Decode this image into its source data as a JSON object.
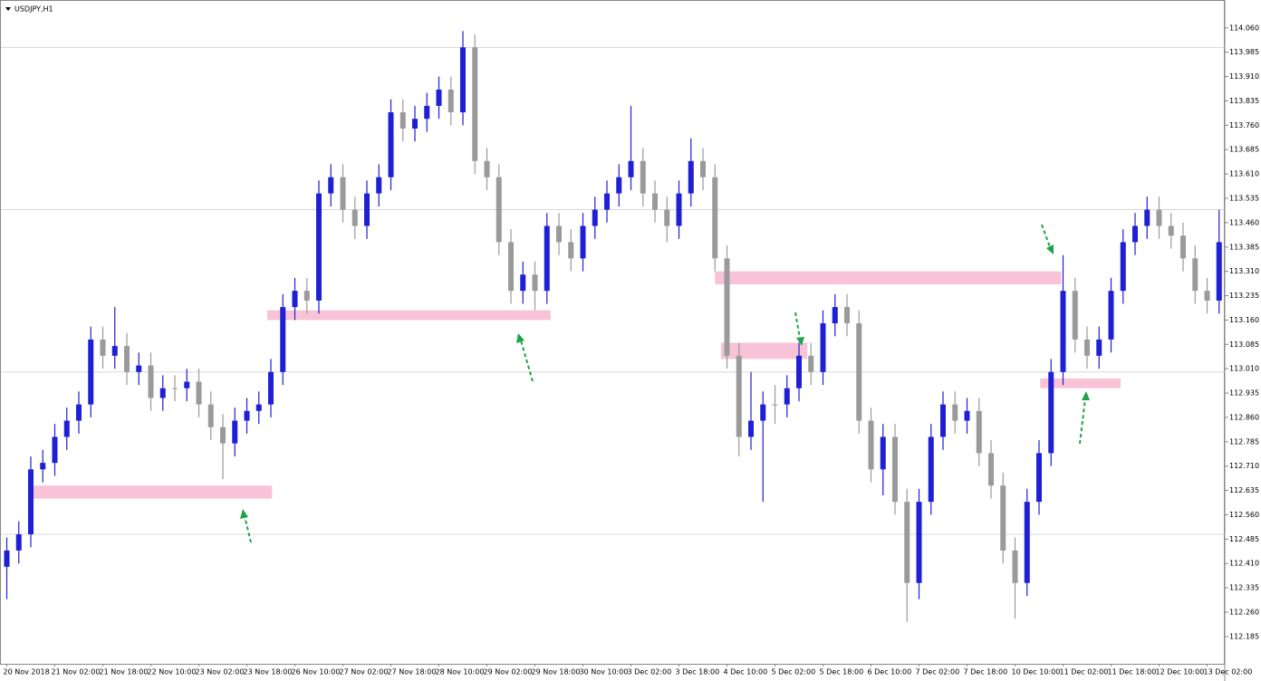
{
  "chart_data": {
    "type": "candlestick",
    "title": "USDJPY,H1",
    "categories": [
      "20 Nov 2018",
      null,
      null,
      null,
      "21 Nov 02:00",
      null,
      null,
      null,
      "21 Nov 18:00",
      null,
      null,
      null,
      "22 Nov 10:00",
      null,
      null,
      null,
      "23 Nov 02:00",
      null,
      null,
      null,
      "23 Nov 18:00",
      null,
      null,
      null,
      "26 Nov 10:00",
      null,
      null,
      null,
      "27 Nov 02:00",
      null,
      null,
      null,
      "27 Nov 18:00",
      null,
      null,
      null,
      "28 Nov 10:00",
      null,
      null,
      null,
      "29 Nov 02:00",
      null,
      null,
      null,
      "29 Nov 18:00",
      null,
      null,
      null,
      "30 Nov 10:00",
      null,
      null,
      null,
      "3 Dec 02:00",
      null,
      null,
      null,
      "3 Dec 18:00",
      null,
      null,
      null,
      "4 Dec 10:00",
      null,
      null,
      null,
      "5 Dec 02:00",
      null,
      null,
      null,
      "5 Dec 18:00",
      null,
      null,
      null,
      "6 Dec 10:00",
      null,
      null,
      null,
      "7 Dec 02:00",
      null,
      null,
      null,
      "7 Dec 18:00",
      null,
      null,
      null,
      "10 Dec 10:00",
      null,
      null,
      null,
      "11 Dec 02:00",
      null,
      null,
      null,
      "11 Dec 18:00",
      null,
      null,
      null,
      "12 Dec 10:00",
      null,
      null,
      null,
      "13 Dec 02:00",
      null
    ],
    "open": [
      112.4,
      112.45,
      112.5,
      112.7,
      112.72,
      112.8,
      112.85,
      112.9,
      113.1,
      113.05,
      113.08,
      113.0,
      113.02,
      112.92,
      112.95,
      112.95,
      112.97,
      112.9,
      112.83,
      112.78,
      112.85,
      112.88,
      112.9,
      113.0,
      113.2,
      113.25,
      113.22,
      113.55,
      113.6,
      113.5,
      113.45,
      113.55,
      113.6,
      113.8,
      113.75,
      113.78,
      113.82,
      113.87,
      113.8,
      114.0,
      113.65,
      113.6,
      113.4,
      113.25,
      113.3,
      113.25,
      113.45,
      113.4,
      113.35,
      113.45,
      113.5,
      113.55,
      113.6,
      113.65,
      113.55,
      113.5,
      113.45,
      113.55,
      113.65,
      113.6,
      113.35,
      113.05,
      112.8,
      112.85,
      112.9,
      112.9,
      112.95,
      113.05,
      113.0,
      113.15,
      113.2,
      113.15,
      112.85,
      112.7,
      112.8,
      112.6,
      112.35,
      112.6,
      112.8,
      112.9,
      112.85,
      112.88,
      112.75,
      112.65,
      112.45,
      112.35,
      112.6,
      112.75,
      113.0,
      113.25,
      113.1,
      113.05,
      113.1,
      113.25,
      113.4,
      113.45,
      113.5,
      113.45,
      113.42,
      113.35,
      113.25,
      113.22
    ],
    "high": [
      112.49,
      112.54,
      112.74,
      112.76,
      112.84,
      112.89,
      112.94,
      113.14,
      113.14,
      113.2,
      113.12,
      113.06,
      113.06,
      112.99,
      112.99,
      113.01,
      113.01,
      112.94,
      112.87,
      112.89,
      112.92,
      112.94,
      113.04,
      113.24,
      113.29,
      113.29,
      113.59,
      113.64,
      113.64,
      113.54,
      113.59,
      113.64,
      113.84,
      113.84,
      113.82,
      113.86,
      113.91,
      113.91,
      114.05,
      114.04,
      113.69,
      113.64,
      113.44,
      113.34,
      113.34,
      113.49,
      113.49,
      113.44,
      113.49,
      113.54,
      113.59,
      113.64,
      113.82,
      113.69,
      113.59,
      113.54,
      113.59,
      113.72,
      113.69,
      113.64,
      113.39,
      113.09,
      113.0,
      112.94,
      112.96,
      112.99,
      113.09,
      113.09,
      113.19,
      113.24,
      113.24,
      113.19,
      112.89,
      112.84,
      112.84,
      112.64,
      112.64,
      112.84,
      112.94,
      112.94,
      112.92,
      112.92,
      112.79,
      112.69,
      112.49,
      112.64,
      112.79,
      113.04,
      113.36,
      113.29,
      113.14,
      113.14,
      113.29,
      113.44,
      113.49,
      113.54,
      113.54,
      113.49,
      113.46,
      113.39,
      113.29,
      113.5
    ],
    "low": [
      112.3,
      112.41,
      112.46,
      112.66,
      112.68,
      112.76,
      112.81,
      112.86,
      113.01,
      113.01,
      112.96,
      112.96,
      112.88,
      112.88,
      112.91,
      112.91,
      112.86,
      112.79,
      112.67,
      112.74,
      112.81,
      112.84,
      112.86,
      112.96,
      113.16,
      113.18,
      113.18,
      113.51,
      113.46,
      113.41,
      113.41,
      113.51,
      113.56,
      113.71,
      113.71,
      113.74,
      113.78,
      113.76,
      113.76,
      113.61,
      113.56,
      113.36,
      113.21,
      113.21,
      113.19,
      113.21,
      113.36,
      113.31,
      113.31,
      113.41,
      113.46,
      113.51,
      113.56,
      113.51,
      113.46,
      113.4,
      113.41,
      113.51,
      113.56,
      113.31,
      113.01,
      112.74,
      112.76,
      112.6,
      112.84,
      112.86,
      112.91,
      112.96,
      112.96,
      113.11,
      113.11,
      112.81,
      112.66,
      112.62,
      112.56,
      112.23,
      112.3,
      112.56,
      112.76,
      112.81,
      112.81,
      112.71,
      112.61,
      112.41,
      112.24,
      112.31,
      112.56,
      112.71,
      112.96,
      113.06,
      113.01,
      113.01,
      113.06,
      113.21,
      113.36,
      113.41,
      113.41,
      113.38,
      113.31,
      113.21,
      113.18,
      113.18
    ],
    "close": [
      112.45,
      112.5,
      112.7,
      112.72,
      112.8,
      112.85,
      112.9,
      113.1,
      113.05,
      113.08,
      113.0,
      113.02,
      112.92,
      112.95,
      112.95,
      112.97,
      112.9,
      112.83,
      112.78,
      112.85,
      112.88,
      112.9,
      113.0,
      113.2,
      113.25,
      113.22,
      113.55,
      113.6,
      113.5,
      113.45,
      113.55,
      113.6,
      113.8,
      113.75,
      113.78,
      113.82,
      113.87,
      113.8,
      114.0,
      113.65,
      113.6,
      113.4,
      113.25,
      113.3,
      113.25,
      113.45,
      113.4,
      113.35,
      113.45,
      113.5,
      113.55,
      113.6,
      113.65,
      113.55,
      113.5,
      113.45,
      113.55,
      113.65,
      113.6,
      113.35,
      113.05,
      112.8,
      112.85,
      112.9,
      112.9,
      112.95,
      113.05,
      113.0,
      113.15,
      113.2,
      113.15,
      112.85,
      112.7,
      112.8,
      112.6,
      112.35,
      112.6,
      112.8,
      112.9,
      112.85,
      112.88,
      112.75,
      112.65,
      112.45,
      112.35,
      112.6,
      112.75,
      113.0,
      113.25,
      113.1,
      113.05,
      113.1,
      113.25,
      113.4,
      113.45,
      113.5,
      113.45,
      113.42,
      113.35,
      113.25,
      113.22,
      113.4
    ],
    "up_color": "#1f1fd6",
    "down_color": "#9a9a9a",
    "ylim": [
      112.101,
      114.146
    ],
    "yticks": [
      {
        "value": 114.06,
        "label": "114.060"
      },
      113.985,
      {
        "value": 113.91,
        "label": "113.910"
      },
      113.835,
      {
        "value": 113.76,
        "label": "113.760"
      },
      113.685,
      {
        "value": 113.61,
        "label": "113.610"
      },
      113.535,
      {
        "value": 113.46,
        "label": "113.460"
      },
      113.385,
      {
        "value": 113.31,
        "label": "113.310"
      },
      113.235,
      {
        "value": 113.16,
        "label": "113.160"
      },
      113.085,
      {
        "value": 113.01,
        "label": "113.010"
      },
      112.935,
      {
        "value": 112.86,
        "label": "112.860"
      },
      112.785,
      {
        "value": 112.71,
        "label": "112.710"
      },
      112.635,
      {
        "value": 112.56,
        "label": "112.560"
      },
      112.485,
      {
        "value": 112.41,
        "label": "112.410"
      },
      112.335,
      {
        "value": 112.26,
        "label": "112.260"
      },
      112.185
    ],
    "levels": [
      114,
      113.5,
      113,
      112.5
    ],
    "level_color": "#d8d8d8",
    "zones": [
      {
        "x": [
          2.2,
          22.1
        ],
        "y": [
          112.61,
          112.65
        ]
      },
      {
        "x": [
          21.7,
          45.3
        ],
        "y": [
          113.16,
          113.19
        ]
      },
      {
        "x": [
          59.0,
          87.85
        ],
        "y": [
          113.27,
          113.31
        ]
      },
      {
        "x": [
          59.5,
          66.7
        ],
        "y": [
          113.04,
          113.09
        ]
      },
      {
        "x": [
          86.1,
          92.8
        ],
        "y": [
          112.95,
          112.98
        ]
      }
    ],
    "zone_color": "#f7b8cf"
  }
}
